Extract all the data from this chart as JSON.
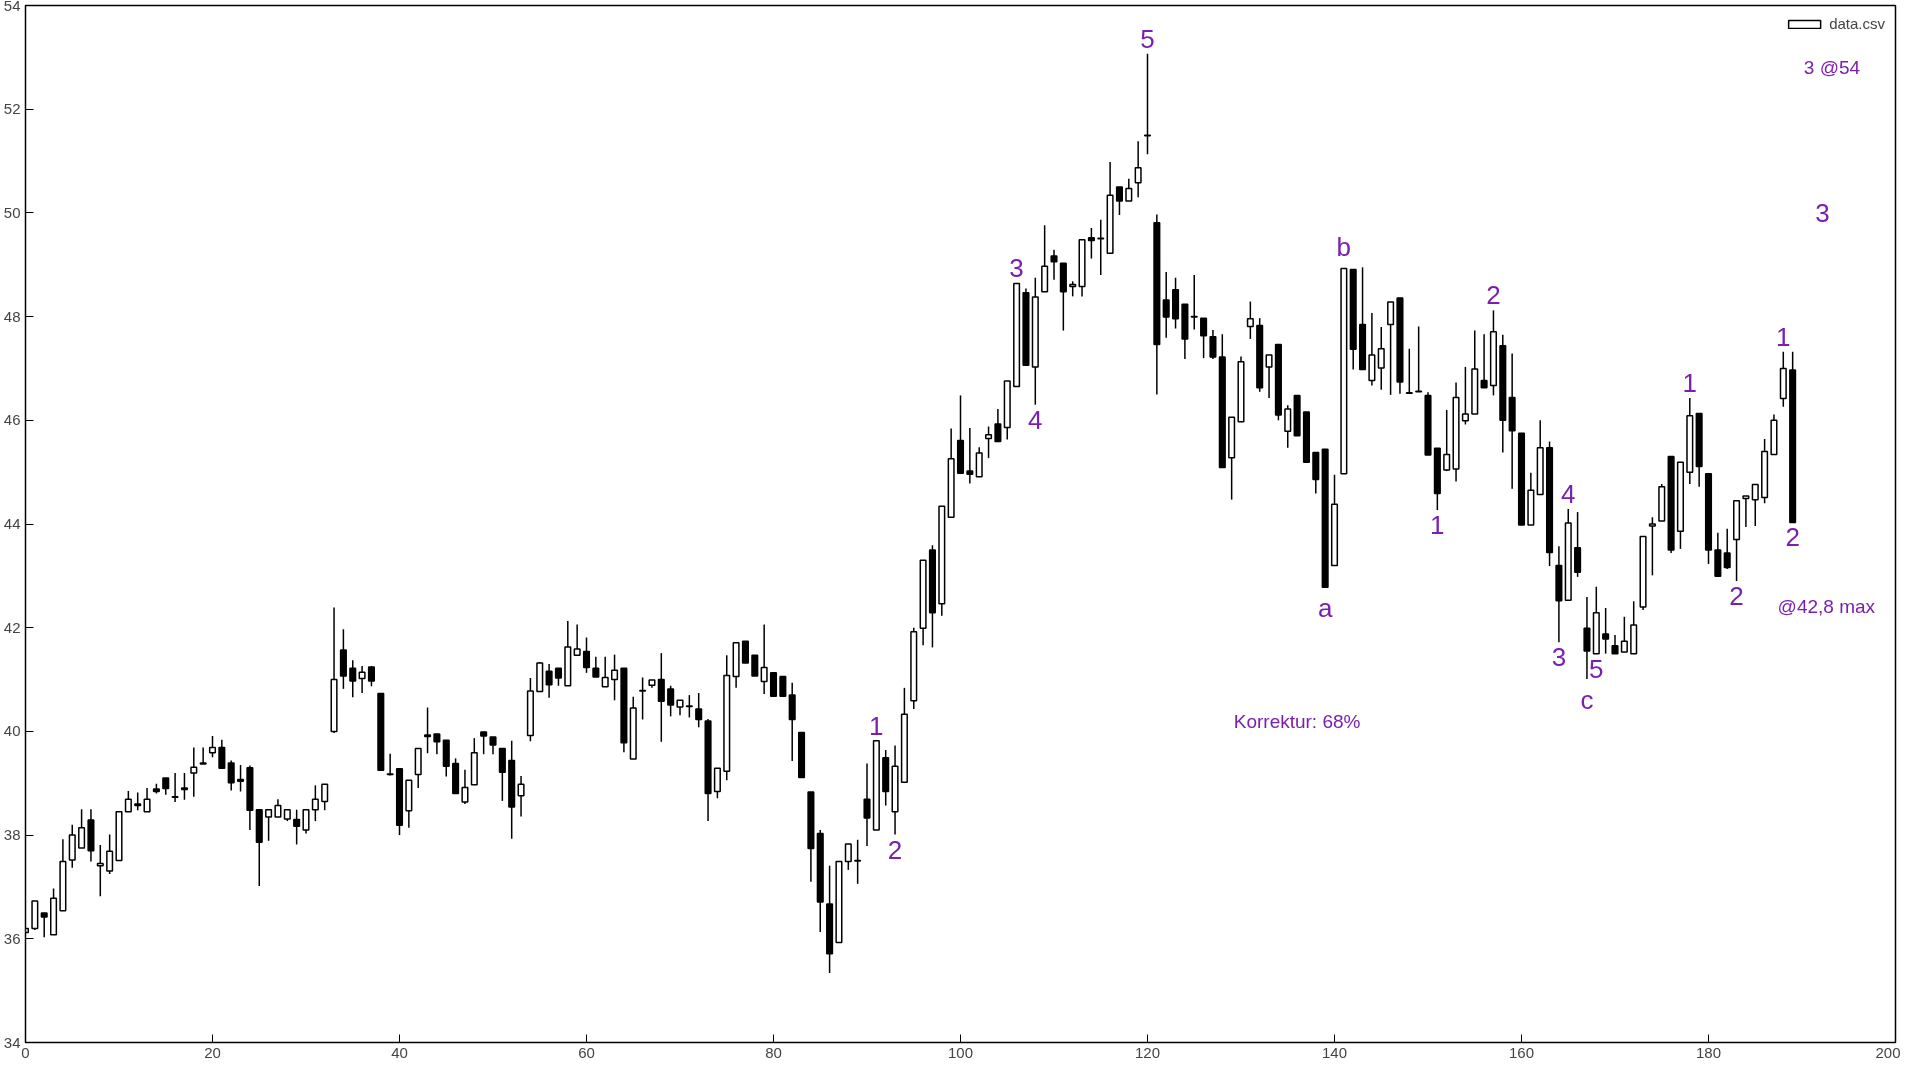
{
  "chart_data": {
    "type": "candlestick",
    "xlim": [
      0,
      200
    ],
    "xticks": [
      0,
      20,
      40,
      60,
      80,
      100,
      120,
      140,
      160,
      180,
      200
    ],
    "ylim": [
      34,
      54
    ],
    "yticks": [
      34,
      36,
      38,
      40,
      42,
      44,
      46,
      48,
      50,
      52,
      54
    ],
    "grid": false,
    "legend": "top right",
    "x": [
      0,
      1,
      2,
      3,
      4,
      5,
      6,
      7,
      8,
      9,
      10,
      11,
      12,
      13,
      14,
      15,
      16,
      17,
      18,
      19,
      20,
      21,
      22,
      23,
      24,
      25,
      26,
      27,
      28,
      29,
      30,
      31,
      32,
      33,
      34,
      35,
      36,
      37,
      38,
      39,
      40,
      41,
      42,
      43,
      44,
      45,
      46,
      47,
      48,
      49,
      50,
      51,
      52,
      53,
      54,
      55,
      56,
      57,
      58,
      59,
      60,
      61,
      62,
      63,
      64,
      65,
      66,
      67,
      68,
      69,
      70,
      71,
      72,
      73,
      74,
      75,
      76,
      77,
      78,
      79,
      80,
      81,
      82,
      83,
      84,
      85,
      86,
      87,
      88,
      89,
      90,
      91,
      92,
      93,
      94,
      95,
      96,
      97,
      98,
      99,
      100,
      101,
      102,
      103,
      104,
      105,
      106,
      107,
      108,
      109,
      110,
      111,
      112,
      113,
      114,
      115,
      116,
      117,
      118,
      119,
      120,
      121,
      122,
      123,
      124,
      125,
      126,
      127,
      128,
      129,
      130,
      131,
      132,
      133,
      134,
      135,
      136,
      137,
      138,
      139,
      140,
      141,
      142,
      143,
      144,
      145,
      146,
      147,
      148,
      149,
      150,
      151,
      152,
      153,
      154,
      155,
      156,
      157,
      158,
      159,
      160,
      161,
      162,
      163,
      164,
      165,
      166,
      167,
      168,
      169,
      170,
      171,
      172,
      173,
      174,
      175,
      176,
      177,
      178,
      179,
      180,
      181,
      182,
      183,
      184,
      185,
      186,
      187,
      188,
      189
    ],
    "series": [
      {
        "name": "data.csv",
        "color": "#000000",
        "ohlc": [
          [
            36.12,
            36.2,
            36.12,
            36.2
          ],
          [
            36.2,
            36.73,
            36.17,
            36.73
          ],
          [
            36.5,
            36.5,
            36.03,
            36.42
          ],
          [
            36.08,
            36.97,
            36.08,
            36.78
          ],
          [
            36.54,
            37.92,
            36.54,
            37.49
          ],
          [
            37.52,
            38.2,
            37.37,
            38.0
          ],
          [
            37.75,
            38.5,
            37.75,
            38.14
          ],
          [
            38.29,
            38.5,
            37.49,
            37.7
          ],
          [
            37.41,
            37.81,
            36.82,
            37.45
          ],
          [
            37.31,
            38.01,
            37.25,
            37.69
          ],
          [
            37.51,
            38.45,
            37.51,
            38.45
          ],
          [
            38.45,
            38.85,
            38.45,
            38.69
          ],
          [
            38.6,
            38.82,
            38.48,
            38.57
          ],
          [
            38.45,
            38.91,
            38.45,
            38.69
          ],
          [
            38.89,
            38.99,
            38.8,
            38.84
          ],
          [
            39.1,
            39.1,
            38.78,
            38.9
          ],
          [
            38.74,
            39.2,
            38.64,
            38.73
          ],
          [
            38.91,
            39.2,
            38.68,
            38.88
          ],
          [
            39.2,
            39.69,
            38.74,
            39.31
          ],
          [
            39.39,
            39.69,
            39.37,
            39.37
          ],
          [
            39.59,
            39.91,
            39.5,
            39.69
          ],
          [
            39.69,
            39.84,
            39.29,
            39.29
          ],
          [
            39.39,
            39.44,
            38.86,
            39.01
          ],
          [
            39.07,
            39.35,
            38.84,
            39.04
          ],
          [
            39.3,
            39.34,
            38.1,
            38.48
          ],
          [
            38.49,
            38.49,
            37.02,
            37.86
          ],
          [
            38.35,
            38.49,
            37.89,
            38.49
          ],
          [
            38.35,
            38.69,
            38.35,
            38.57
          ],
          [
            38.31,
            38.49,
            38.27,
            38.49
          ],
          [
            38.3,
            38.49,
            37.82,
            38.17
          ],
          [
            38.1,
            38.49,
            38.03,
            38.49
          ],
          [
            38.49,
            38.96,
            38.27,
            38.69
          ],
          [
            38.65,
            38.98,
            38.48,
            38.98
          ],
          [
            40.0,
            42.39,
            39.97,
            41.0
          ],
          [
            41.57,
            41.97,
            40.82,
            41.07
          ],
          [
            41.22,
            41.37,
            40.66,
            40.97
          ],
          [
            41.02,
            41.26,
            40.74,
            41.14
          ],
          [
            41.24,
            41.26,
            40.87,
            40.97
          ],
          [
            40.73,
            40.73,
            39.25,
            39.25
          ],
          [
            39.18,
            39.57,
            39.15,
            39.17
          ],
          [
            39.28,
            39.28,
            38.0,
            38.19
          ],
          [
            38.47,
            39.06,
            38.14,
            39.06
          ],
          [
            39.17,
            39.67,
            38.91,
            39.67
          ],
          [
            39.93,
            40.46,
            39.58,
            39.9
          ],
          [
            39.95,
            39.95,
            39.56,
            39.8
          ],
          [
            39.83,
            39.83,
            39.13,
            39.33
          ],
          [
            39.38,
            39.48,
            38.8,
            38.8
          ],
          [
            38.64,
            39.26,
            38.6,
            38.92
          ],
          [
            38.97,
            39.87,
            38.97,
            39.59
          ],
          [
            39.99,
            39.99,
            39.56,
            39.91
          ],
          [
            39.89,
            39.89,
            39.56,
            39.74
          ],
          [
            39.67,
            39.67,
            38.66,
            39.21
          ],
          [
            39.44,
            39.82,
            37.93,
            38.54
          ],
          [
            38.76,
            39.14,
            38.36,
            38.98
          ],
          [
            39.92,
            41.03,
            39.81,
            40.78
          ],
          [
            40.77,
            41.34,
            40.77,
            41.32
          ],
          [
            41.16,
            41.3,
            40.65,
            40.9
          ],
          [
            41.22,
            41.22,
            40.88,
            41.03
          ],
          [
            40.88,
            42.13,
            40.88,
            41.63
          ],
          [
            41.47,
            42.06,
            41.47,
            41.59
          ],
          [
            41.54,
            41.81,
            41.13,
            41.23
          ],
          [
            41.22,
            41.44,
            41.05,
            41.05
          ],
          [
            40.86,
            41.44,
            40.86,
            41.04
          ],
          [
            41.0,
            41.48,
            40.6,
            41.18
          ],
          [
            41.22,
            41.22,
            39.6,
            39.78
          ],
          [
            39.47,
            40.67,
            39.47,
            40.45
          ],
          [
            40.79,
            41.04,
            40.23,
            40.78
          ],
          [
            40.89,
            40.99,
            40.84,
            40.99
          ],
          [
            41.0,
            41.51,
            39.8,
            40.58
          ],
          [
            40.82,
            40.88,
            40.29,
            40.51
          ],
          [
            40.47,
            40.6,
            40.31,
            40.6
          ],
          [
            40.49,
            40.7,
            40.27,
            40.48
          ],
          [
            40.43,
            40.74,
            40.08,
            40.23
          ],
          [
            40.2,
            40.24,
            38.27,
            38.8
          ],
          [
            38.84,
            39.29,
            38.71,
            39.29
          ],
          [
            39.23,
            41.47,
            39.06,
            41.08
          ],
          [
            41.06,
            41.71,
            40.84,
            41.71
          ],
          [
            41.74,
            41.74,
            41.32,
            41.32
          ],
          [
            41.47,
            41.47,
            41.07,
            41.07
          ],
          [
            40.96,
            42.06,
            40.72,
            41.23
          ],
          [
            41.13,
            41.13,
            40.68,
            40.68
          ],
          [
            41.06,
            41.06,
            40.68,
            40.68
          ],
          [
            40.7,
            40.94,
            39.43,
            40.23
          ],
          [
            39.98,
            39.98,
            39.11,
            39.11
          ],
          [
            38.83,
            38.83,
            37.1,
            37.74
          ],
          [
            38.03,
            38.1,
            36.13,
            36.71
          ],
          [
            36.67,
            37.41,
            35.34,
            35.71
          ],
          [
            35.93,
            37.49,
            35.93,
            37.49
          ],
          [
            37.49,
            37.83,
            37.33,
            37.83
          ],
          [
            37.51,
            37.91,
            37.06,
            37.5
          ],
          [
            38.69,
            39.38,
            37.79,
            38.33
          ],
          [
            38.1,
            39.82,
            38.1,
            39.82
          ],
          [
            39.49,
            39.64,
            38.57,
            38.84
          ],
          [
            38.45,
            39.73,
            38.01,
            39.33
          ],
          [
            39.02,
            40.84,
            39.02,
            40.33
          ],
          [
            40.59,
            42.0,
            40.43,
            41.92
          ],
          [
            41.99,
            43.3,
            41.66,
            43.3
          ],
          [
            43.5,
            43.59,
            41.62,
            42.29
          ],
          [
            42.46,
            44.34,
            42.23,
            44.34
          ],
          [
            44.13,
            45.84,
            44.13,
            45.26
          ],
          [
            45.61,
            46.48,
            44.98,
            44.98
          ],
          [
            45.02,
            45.85,
            44.78,
            44.96
          ],
          [
            44.91,
            45.48,
            44.91,
            45.37
          ],
          [
            45.65,
            45.88,
            45.27,
            45.72
          ],
          [
            45.93,
            46.22,
            45.59,
            45.59
          ],
          [
            45.86,
            46.76,
            45.63,
            46.76
          ],
          [
            46.65,
            48.64,
            46.65,
            48.64
          ],
          [
            48.46,
            48.54,
            47.06,
            47.06
          ],
          [
            47.03,
            48.75,
            46.3,
            48.38
          ],
          [
            48.48,
            49.76,
            48.48,
            48.97
          ],
          [
            49.17,
            49.29,
            48.71,
            49.06
          ],
          [
            49.03,
            49.03,
            47.73,
            48.48
          ],
          [
            48.58,
            48.68,
            48.39,
            48.62
          ],
          [
            48.58,
            49.48,
            48.39,
            49.48
          ],
          [
            49.52,
            49.71,
            49.12,
            49.47
          ],
          [
            49.51,
            49.87,
            48.8,
            49.5
          ],
          [
            49.22,
            50.98,
            49.22,
            50.34
          ],
          [
            50.5,
            50.5,
            49.96,
            50.23
          ],
          [
            50.23,
            50.66,
            50.23,
            50.47
          ],
          [
            50.58,
            51.38,
            50.3,
            50.87
          ],
          [
            51.5,
            53.07,
            51.13,
            51.49
          ],
          [
            49.81,
            49.97,
            46.5,
            47.46
          ],
          [
            48.32,
            48.86,
            47.59,
            47.99
          ],
          [
            48.52,
            48.75,
            47.77,
            47.96
          ],
          [
            48.24,
            48.24,
            47.18,
            47.57
          ],
          [
            48.0,
            48.8,
            47.75,
            47.99
          ],
          [
            47.97,
            47.97,
            47.2,
            47.63
          ],
          [
            47.61,
            47.74,
            47.18,
            47.22
          ],
          [
            47.22,
            47.66,
            45.09,
            45.09
          ],
          [
            45.28,
            46.06,
            44.47,
            46.06
          ],
          [
            45.97,
            47.23,
            45.97,
            47.13
          ],
          [
            47.81,
            48.29,
            47.57,
            47.96
          ],
          [
            47.83,
            47.97,
            46.55,
            46.63
          ],
          [
            47.03,
            47.26,
            46.43,
            47.26
          ],
          [
            47.46,
            47.46,
            46.0,
            46.1
          ],
          [
            45.79,
            46.29,
            45.47,
            46.22
          ],
          [
            46.48,
            46.48,
            45.7,
            45.7
          ],
          [
            46.16,
            46.16,
            45.19,
            45.19
          ],
          [
            45.38,
            45.38,
            44.59,
            44.86
          ],
          [
            45.44,
            45.44,
            42.78,
            42.78
          ],
          [
            43.2,
            44.95,
            43.2,
            44.38
          ],
          [
            44.97,
            48.93,
            44.97,
            48.93
          ],
          [
            48.91,
            48.91,
            46.98,
            47.37
          ],
          [
            47.85,
            48.95,
            46.98,
            46.98
          ],
          [
            46.77,
            48.07,
            46.67,
            47.26
          ],
          [
            47.01,
            47.8,
            46.59,
            47.38
          ],
          [
            47.85,
            48.28,
            46.49,
            48.28
          ],
          [
            48.36,
            48.36,
            46.51,
            46.74
          ],
          [
            46.53,
            47.38,
            46.52,
            46.52
          ],
          [
            46.56,
            47.81,
            46.55,
            46.55
          ],
          [
            46.48,
            46.54,
            45.33,
            45.33
          ],
          [
            45.46,
            45.46,
            44.27,
            44.59
          ],
          [
            45.04,
            46.2,
            45.02,
            45.34
          ],
          [
            45.06,
            46.73,
            44.82,
            46.44
          ],
          [
            45.99,
            47.03,
            45.92,
            46.12
          ],
          [
            46.12,
            47.73,
            46.12,
            46.99
          ],
          [
            46.77,
            47.66,
            46.63,
            46.63
          ],
          [
            46.67,
            48.12,
            46.48,
            47.71
          ],
          [
            47.44,
            47.65,
            45.38,
            46.0
          ],
          [
            46.44,
            47.29,
            44.68,
            45.8
          ],
          [
            45.75,
            45.75,
            43.98,
            43.98
          ],
          [
            43.98,
            44.99,
            43.98,
            44.65
          ],
          [
            44.57,
            46.0,
            44.57,
            45.47
          ],
          [
            45.47,
            45.59,
            43.19,
            43.45
          ],
          [
            43.2,
            43.57,
            41.72,
            42.52
          ],
          [
            42.53,
            44.29,
            42.53,
            44.02
          ],
          [
            43.54,
            44.23,
            42.98,
            43.07
          ],
          [
            41.99,
            42.59,
            41.01,
            41.55
          ],
          [
            41.5,
            42.79,
            41.5,
            42.29
          ],
          [
            41.88,
            42.38,
            41.5,
            41.78
          ],
          [
            41.65,
            41.86,
            41.5,
            41.5
          ],
          [
            41.53,
            42.21,
            41.53,
            41.74
          ],
          [
            41.5,
            42.51,
            41.5,
            42.05
          ],
          [
            42.4,
            43.76,
            42.34,
            43.76
          ],
          [
            43.96,
            44.13,
            43.01,
            44.0
          ],
          [
            44.06,
            44.77,
            44.06,
            44.72
          ],
          [
            45.3,
            45.3,
            43.44,
            43.5
          ],
          [
            43.86,
            45.19,
            43.52,
            45.19
          ],
          [
            45.0,
            46.43,
            44.77,
            46.09
          ],
          [
            46.13,
            46.13,
            44.72,
            45.11
          ],
          [
            44.97,
            44.97,
            43.23,
            43.5
          ],
          [
            43.5,
            43.83,
            42.99,
            42.99
          ],
          [
            43.44,
            43.91,
            43.13,
            43.16
          ],
          [
            43.7,
            44.45,
            42.9,
            44.45
          ],
          [
            44.49,
            44.54,
            43.94,
            44.54
          ],
          [
            44.47,
            44.76,
            43.96,
            44.76
          ],
          [
            44.51,
            45.64,
            44.4,
            45.4
          ],
          [
            45.34,
            46.11,
            45.34,
            46.0
          ],
          [
            46.42,
            47.32,
            46.26,
            47.0
          ],
          [
            46.97,
            47.32,
            44.03,
            44.03
          ]
        ]
      }
    ],
    "annotations": [
      {
        "text": "1",
        "x": 91,
        "y": 39.82
      },
      {
        "text": "2",
        "x": 93,
        "y": 38.01
      },
      {
        "text": "3",
        "x": 106,
        "y": 48.64
      },
      {
        "text": "4",
        "x": 108,
        "y": 46.3
      },
      {
        "text": "5",
        "x": 120,
        "y": 53.07
      },
      {
        "text": "a",
        "x": 139,
        "y": 42.78
      },
      {
        "text": "b",
        "x": 141,
        "y": 48.93
      },
      {
        "text": "c",
        "x": 167,
        "y": 41.01
      },
      {
        "text": "1",
        "x": 151,
        "y": 44.27
      },
      {
        "text": "2",
        "x": 157,
        "y": 48.12
      },
      {
        "text": "3",
        "x": 164,
        "y": 41.72
      },
      {
        "text": "4",
        "x": 165,
        "y": 44.29
      },
      {
        "text": "5",
        "x": 168,
        "y": 41.5
      },
      {
        "text": "1",
        "x": 178,
        "y": 46.43
      },
      {
        "text": "2",
        "x": 183,
        "y": 42.9
      },
      {
        "text": "1",
        "x": 188,
        "y": 47.32
      },
      {
        "text": "2",
        "x": 189,
        "y": 44.03
      },
      "3",
      "@42,8 max",
      "3 @54",
      "Korrektur: 68%"
    ]
  }
}
